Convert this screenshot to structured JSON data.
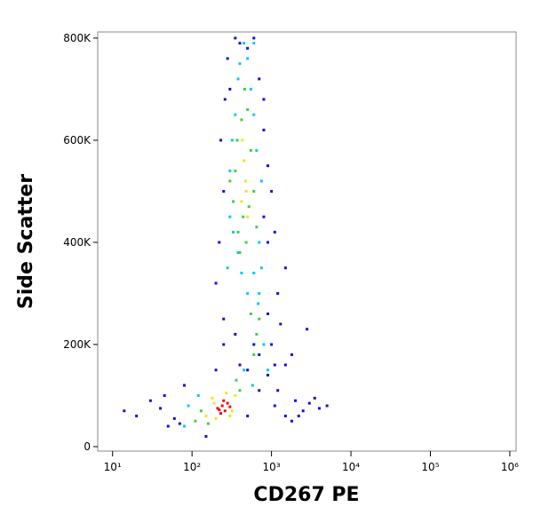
{
  "chart_data": {
    "type": "scatter",
    "x_label": "CD267 PE",
    "y_label": "Side Scatter",
    "x_scale": "log",
    "xlim": [
      6.5,
      1200000
    ],
    "ylim": [
      -8700,
      812000
    ],
    "xticks": [
      {
        "value": 10,
        "label": "10¹"
      },
      {
        "value": 100,
        "label": "10²"
      },
      {
        "value": 1000,
        "label": "10³"
      },
      {
        "value": 10000,
        "label": "10⁴"
      },
      {
        "value": 100000,
        "label": "10⁵"
      },
      {
        "value": 1000000,
        "label": "10⁶"
      }
    ],
    "yticks": [
      0,
      {
        "value": 200000,
        "label": "200K"
      },
      {
        "value": 400000,
        "label": "400K"
      },
      {
        "value": 600000,
        "label": "600K"
      },
      {
        "value": 800000,
        "label": "800K"
      }
    ],
    "series": [
      {
        "color": "#1010e0",
        "x": [
          14,
          20,
          30,
          40,
          50,
          60,
          45,
          70,
          80,
          1100,
          1500,
          2000,
          2500,
          3000,
          4000,
          5000,
          1200,
          1800,
          2200,
          3500,
          150,
          200,
          250,
          700,
          1000,
          1200,
          900,
          1500,
          800,
          1100,
          200,
          220,
          250,
          230,
          900,
          1000,
          800,
          1100,
          260,
          300,
          280,
          350,
          400,
          500,
          600,
          700,
          800,
          900,
          1300,
          2800,
          600,
          700,
          500,
          250,
          1800,
          900,
          350,
          400,
          500,
          1500
        ],
        "values": [
          70000,
          60000,
          90000,
          75000,
          40000,
          55000,
          100000,
          45000,
          120000,
          80000,
          60000,
          90000,
          70000,
          85000,
          75000,
          80000,
          110000,
          50000,
          60000,
          95000,
          20000,
          150000,
          250000,
          110000,
          200000,
          300000,
          400000,
          350000,
          450000,
          160000,
          320000,
          400000,
          500000,
          600000,
          550000,
          500000,
          620000,
          420000,
          680000,
          700000,
          760000,
          800000,
          790000,
          780000,
          800000,
          720000,
          680000,
          260000,
          240000,
          230000,
          200000,
          180000,
          150000,
          200000,
          180000,
          140000,
          220000,
          160000,
          60000,
          160000
        ]
      },
      {
        "color": "#10c8e8",
        "x": [
          80,
          90,
          120,
          450,
          500,
          700,
          800,
          750,
          600,
          900,
          580,
          680,
          280,
          300,
          700,
          750,
          320,
          350,
          600,
          650,
          380,
          400,
          500,
          550,
          330,
          420,
          380,
          450,
          600,
          300
        ],
        "values": [
          40000,
          80000,
          100000,
          150000,
          300000,
          300000,
          200000,
          350000,
          340000,
          150000,
          120000,
          280000,
          350000,
          450000,
          400000,
          520000,
          600000,
          650000,
          650000,
          580000,
          720000,
          750000,
          760000,
          700000,
          420000,
          340000,
          380000,
          790000,
          790000,
          540000
        ]
      },
      {
        "color": "#40d040",
        "x": [
          110,
          130,
          400,
          160,
          360,
          600,
          650,
          550,
          700,
          380,
          520,
          350,
          600,
          420,
          550,
          480,
          400,
          330,
          500,
          460,
          370,
          650,
          300,
          440
        ],
        "values": [
          50000,
          70000,
          110000,
          45000,
          130000,
          180000,
          220000,
          260000,
          250000,
          420000,
          470000,
          540000,
          500000,
          640000,
          580000,
          400000,
          380000,
          480000,
          660000,
          700000,
          600000,
          430000,
          520000,
          450000
        ]
      },
      {
        "color": "#e8e820",
        "x": [
          150,
          180,
          320,
          350,
          200,
          270,
          190,
          300,
          420,
          470,
          450,
          500,
          430,
          480
        ],
        "values": [
          60000,
          95000,
          70000,
          100000,
          55000,
          105000,
          85000,
          60000,
          480000,
          520000,
          560000,
          450000,
          600000,
          500000
        ]
      },
      {
        "color": "#e81010",
        "x": [
          210,
          240,
          260,
          280,
          230,
          250,
          300,
          220
        ],
        "values": [
          75000,
          80000,
          70000,
          85000,
          65000,
          90000,
          78000,
          72000
        ]
      }
    ]
  }
}
